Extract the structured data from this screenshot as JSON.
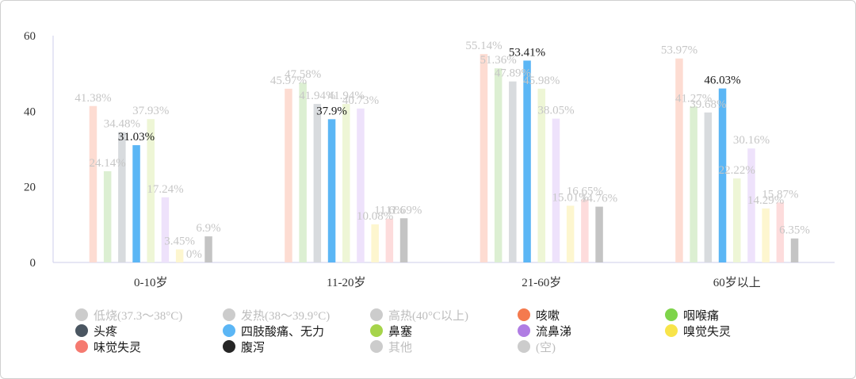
{
  "chart_data": {
    "type": "bar",
    "categories": [
      "0-10岁",
      "11-20岁",
      "21-60岁",
      "60岁以上"
    ],
    "ylim": [
      0,
      60
    ],
    "yticks": [
      0,
      20,
      40,
      60
    ],
    "grid": false,
    "legend_position": "bottom",
    "series": [
      {
        "name": "低烧(37.3～38°C)",
        "values": [
          41.38,
          45.97,
          55.14,
          53.97
        ],
        "labels": [
          "41.38%",
          "45.97%",
          "55.14%",
          "53.97%"
        ],
        "bar_color": "#fddcd2",
        "legend_color": "#cccccc",
        "label_color": "#c6c6c6",
        "legend_text_color": "#bdbdbd"
      },
      {
        "name": "发热(38～39.9°C)",
        "values": [
          24.14,
          47.58,
          51.36,
          41.27
        ],
        "labels": [
          "24.14%",
          "47.58%",
          "51.36%",
          "41.27%"
        ],
        "bar_color": "#dcefd2",
        "legend_color": "#cccccc",
        "label_color": "#c6c6c6",
        "legend_text_color": "#bdbdbd"
      },
      {
        "name": "高热(40°C以上)",
        "values": [
          34.48,
          41.94,
          47.89,
          39.68
        ],
        "labels": [
          "34.48%",
          "41.94%",
          "47.89%",
          "39.68%"
        ],
        "bar_color": "#d8dbde",
        "legend_color": "#cccccc",
        "label_color": "#c6c6c6",
        "legend_text_color": "#bdbdbd"
      },
      {
        "name": "四肢酸痛、无力",
        "values": [
          31.03,
          37.9,
          53.41,
          46.03
        ],
        "labels": [
          "31.03%",
          "37.9%",
          "53.41%",
          "46.03%"
        ],
        "bar_color": "#5bb6f5",
        "legend_color": "#5bb6f5",
        "label_color": "#1a1a1a",
        "legend_text_color": "#1a1a1a"
      },
      {
        "name": "鼻塞",
        "values": [
          37.93,
          41.94,
          45.98,
          22.22
        ],
        "labels": [
          "37.93%",
          "41.94%",
          "45.98%",
          "22.22%"
        ],
        "bar_color": "#eef6d6",
        "legend_color": "#a6d44a",
        "label_color": "#c6c6c6",
        "legend_text_color": "#1a1a1a"
      },
      {
        "name": "流鼻涕",
        "values": [
          17.24,
          40.73,
          38.05,
          30.16
        ],
        "labels": [
          "17.24%",
          "40.73%",
          "38.05%",
          "30.16%"
        ],
        "bar_color": "#eee2fb",
        "legend_color": "#b07de3",
        "label_color": "#c6c6c6",
        "legend_text_color": "#1a1a1a"
      },
      {
        "name": "嗅觉失灵",
        "values": [
          3.45,
          10.08,
          15.01,
          14.29
        ],
        "labels": [
          "3.45%",
          "10.08%",
          "15.01%",
          "14.29%"
        ],
        "bar_color": "#fdf6cf",
        "legend_color": "#f8e44a",
        "label_color": "#c6c6c6",
        "legend_text_color": "#1a1a1a"
      },
      {
        "name": "味觉失灵",
        "values": [
          0,
          11.6,
          16.65,
          15.87
        ],
        "labels": [
          "0%",
          "11.6%",
          "16.65%",
          "15.87%"
        ],
        "bar_color": "#fddcdc",
        "legend_color": "#f57a70",
        "label_color": "#c6c6c6",
        "legend_text_color": "#1a1a1a"
      },
      {
        "name": "其他",
        "values": [
          6.9,
          11.69,
          14.76,
          6.35
        ],
        "labels": [
          "6.9%",
          "11.69%",
          "14.76%",
          "6.35%"
        ],
        "bar_color": "#c4c4c4",
        "legend_color": "#cccccc",
        "label_color": "#c6c6c6",
        "legend_text_color": "#bdbdbd"
      }
    ],
    "legend": [
      {
        "name": "低烧(37.3～38°C)",
        "color": "#cccccc",
        "text_color": "#bdbdbd"
      },
      {
        "name": "发热(38～39.9°C)",
        "color": "#cccccc",
        "text_color": "#bdbdbd"
      },
      {
        "name": "高热(40°C以上)",
        "color": "#cccccc",
        "text_color": "#bdbdbd"
      },
      {
        "name": "咳嗽",
        "color": "#f47a4e",
        "text_color": "#1a1a1a"
      },
      {
        "name": "咽喉痛",
        "color": "#7ed44a",
        "text_color": "#1a1a1a"
      },
      {
        "name": "头疼",
        "color": "#4a5661",
        "text_color": "#1a1a1a"
      },
      {
        "name": "四肢酸痛、无力",
        "color": "#5bb6f5",
        "text_color": "#1a1a1a"
      },
      {
        "name": "鼻塞",
        "color": "#a6d44a",
        "text_color": "#1a1a1a"
      },
      {
        "name": "流鼻涕",
        "color": "#b07de3",
        "text_color": "#1a1a1a"
      },
      {
        "name": "嗅觉失灵",
        "color": "#f8e44a",
        "text_color": "#1a1a1a"
      },
      {
        "name": "味觉失灵",
        "color": "#f57a70",
        "text_color": "#1a1a1a"
      },
      {
        "name": "腹泻",
        "color": "#262626",
        "text_color": "#1a1a1a"
      },
      {
        "name": "其他",
        "color": "#cccccc",
        "text_color": "#bdbdbd"
      },
      {
        "name": "(空)",
        "color": "#cccccc",
        "text_color": "#bdbdbd"
      }
    ]
  }
}
